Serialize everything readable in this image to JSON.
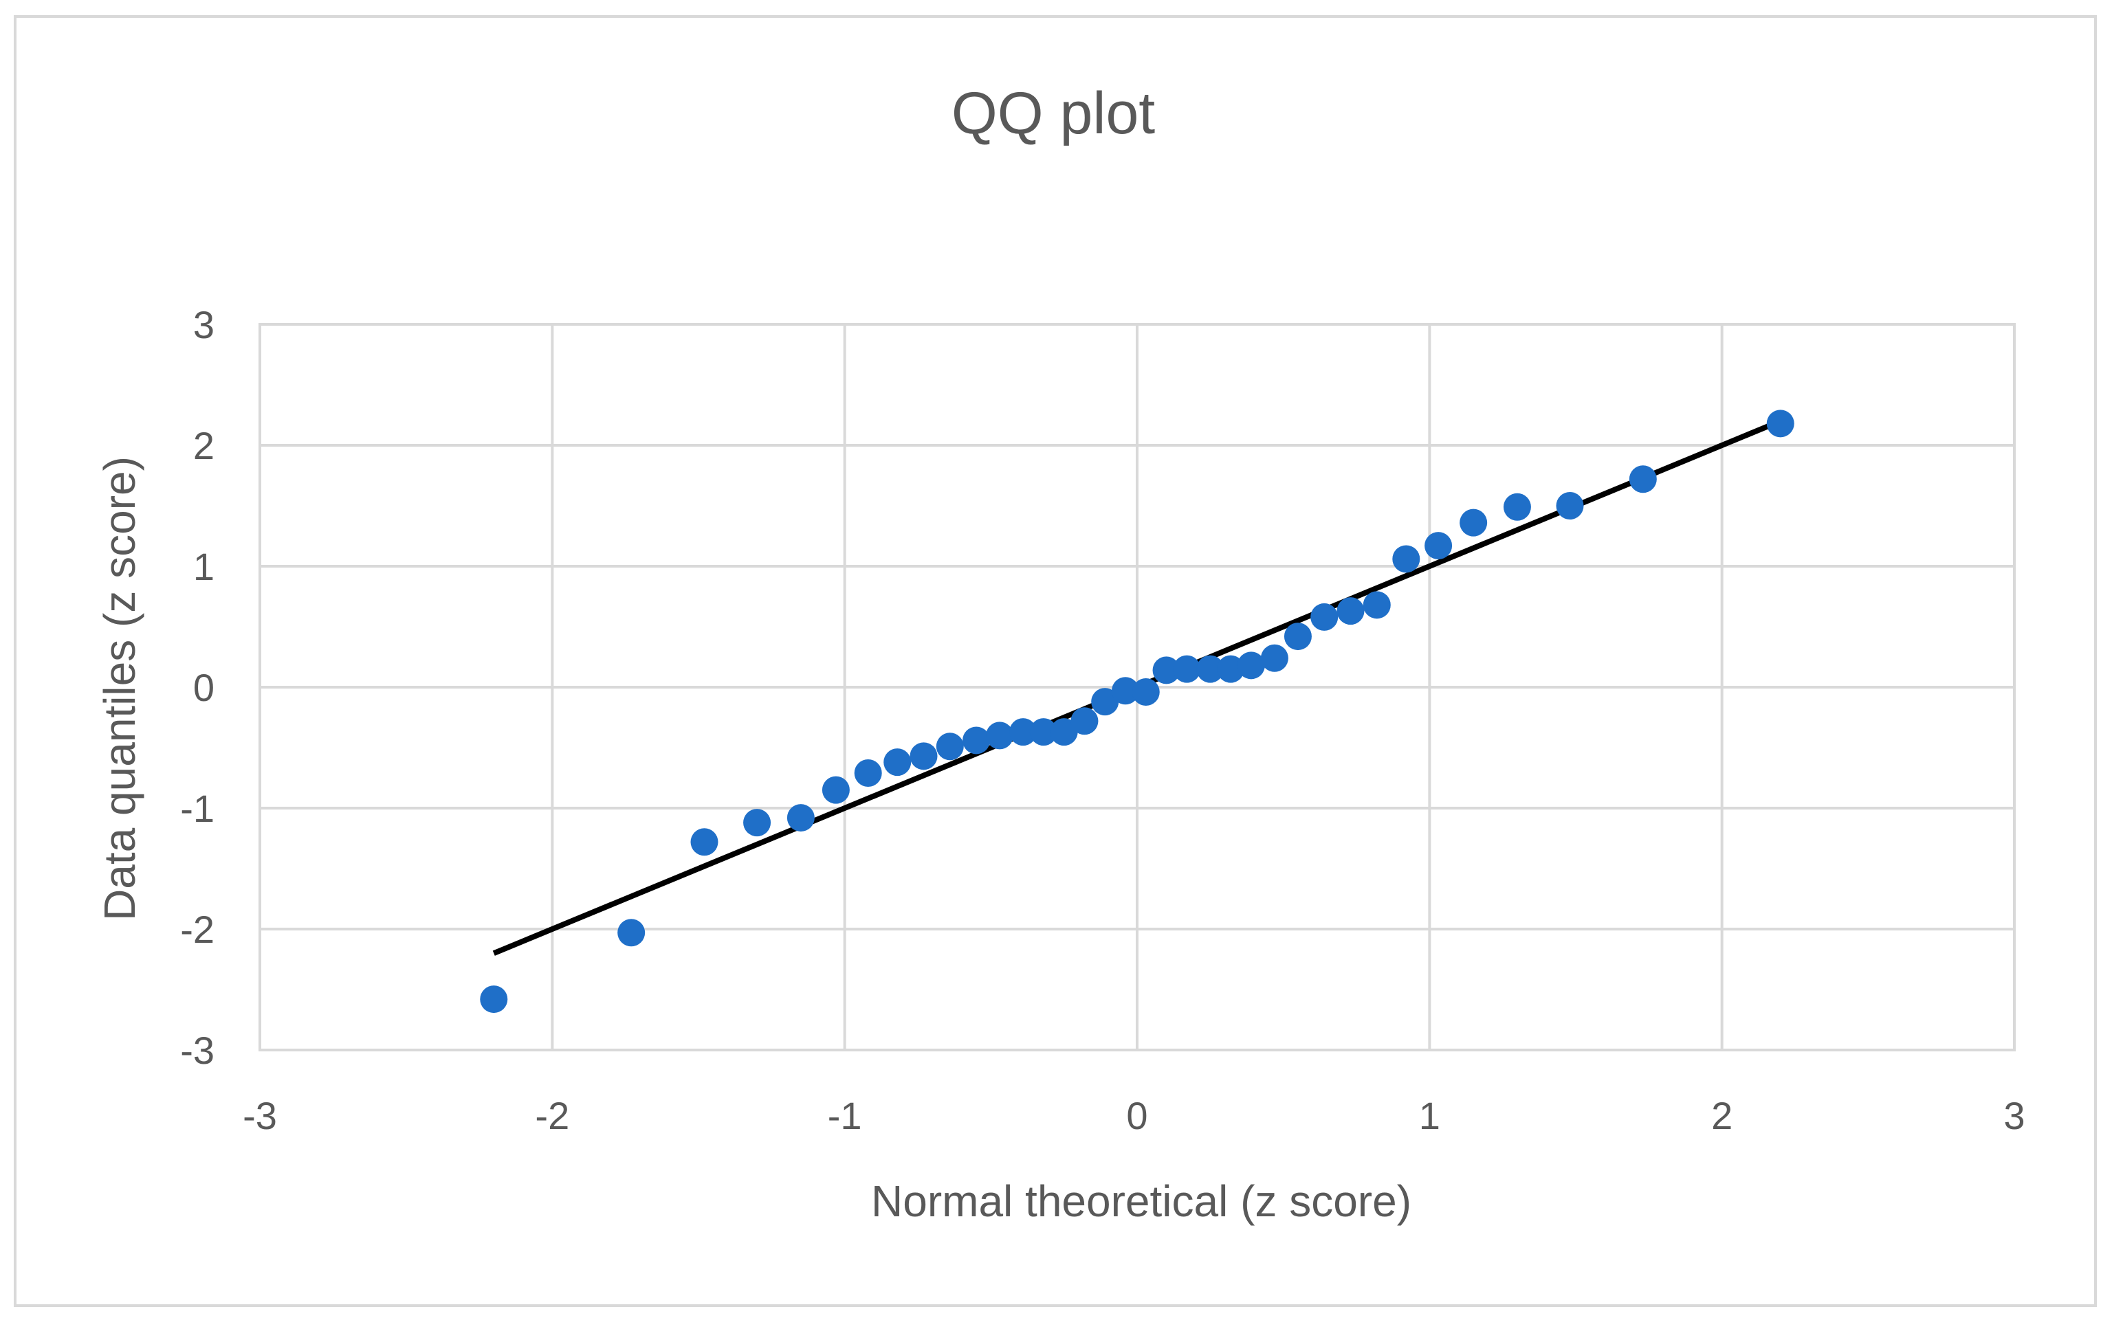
{
  "chart_data": {
    "type": "scatter",
    "title": "QQ plot",
    "xlabel": "Normal theoretical (z score)",
    "ylabel": "Data quantiles (z score)",
    "xlim": [
      -3,
      3
    ],
    "ylim": [
      -3,
      3
    ],
    "xticks": [
      -3,
      -2,
      -1,
      0,
      1,
      2,
      3
    ],
    "yticks": [
      -3,
      -2,
      -1,
      0,
      1,
      2,
      3
    ],
    "xtick_labels": [
      "-3",
      "-2",
      "-1",
      "0",
      "1",
      "2",
      "3"
    ],
    "ytick_labels": [
      "-3",
      "-2",
      "-1",
      "0",
      "1",
      "2",
      "3"
    ],
    "grid": true,
    "legend": "none",
    "series": [
      {
        "type": "scatter",
        "color": "#1f6fc8",
        "points": [
          [
            -2.2,
            -2.58
          ],
          [
            -1.73,
            -2.03
          ],
          [
            -1.48,
            -1.28
          ],
          [
            -1.3,
            -1.12
          ],
          [
            -1.15,
            -1.08
          ],
          [
            -1.03,
            -0.85
          ],
          [
            -0.92,
            -0.71
          ],
          [
            -0.82,
            -0.62
          ],
          [
            -0.73,
            -0.57
          ],
          [
            -0.64,
            -0.49
          ],
          [
            -0.55,
            -0.44
          ],
          [
            -0.47,
            -0.4
          ],
          [
            -0.39,
            -0.37
          ],
          [
            -0.32,
            -0.37
          ],
          [
            -0.25,
            -0.37
          ],
          [
            -0.18,
            -0.28
          ],
          [
            -0.11,
            -0.12
          ],
          [
            -0.04,
            -0.03
          ],
          [
            0.03,
            -0.04
          ],
          [
            0.1,
            0.14
          ],
          [
            0.17,
            0.15
          ],
          [
            0.25,
            0.15
          ],
          [
            0.32,
            0.15
          ],
          [
            0.39,
            0.18
          ],
          [
            0.47,
            0.24
          ],
          [
            0.55,
            0.42
          ],
          [
            0.64,
            0.58
          ],
          [
            0.73,
            0.63
          ],
          [
            0.82,
            0.68
          ],
          [
            0.92,
            1.06
          ],
          [
            1.03,
            1.17
          ],
          [
            1.15,
            1.36
          ],
          [
            1.3,
            1.49
          ],
          [
            1.48,
            1.5
          ],
          [
            1.73,
            1.72
          ],
          [
            2.2,
            2.18
          ]
        ]
      },
      {
        "type": "line",
        "color": "#000000",
        "points": [
          [
            -2.2,
            -2.2
          ],
          [
            2.2,
            2.2
          ]
        ]
      }
    ]
  }
}
